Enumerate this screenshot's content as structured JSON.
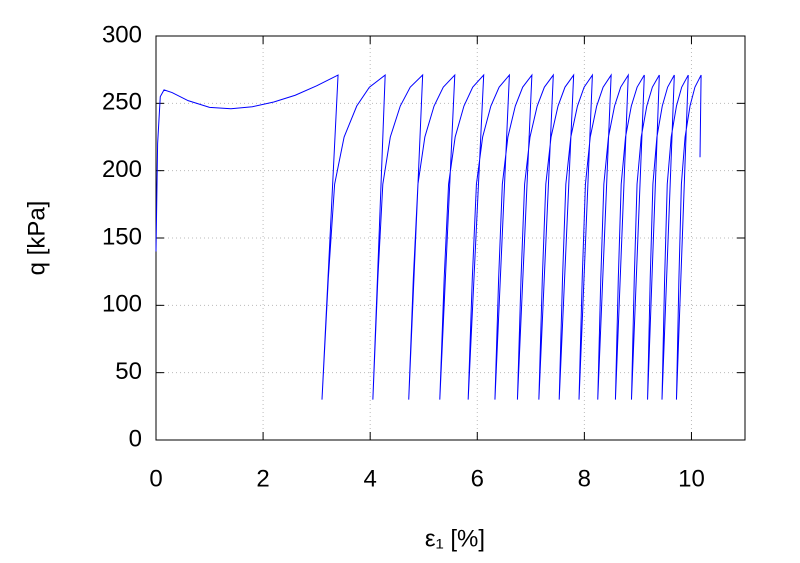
{
  "chart_data": {
    "type": "line",
    "x_label": "ε₁ [%]",
    "y_label": "q [kPa]",
    "x": [
      0,
      0.03,
      0.08,
      0.15,
      0.3,
      0.6,
      1.0,
      1.4,
      1.8,
      2.2,
      2.6,
      3.0,
      3.4,
      3.1,
      3.218,
      3.336,
      3.513,
      3.749,
      3.985,
      4.28,
      4.05,
      4.143,
      4.236,
      4.376,
      4.562,
      4.748,
      4.98,
      4.72,
      4.806,
      4.892,
      5.021,
      5.193,
      5.365,
      5.58,
      5.3,
      5.382,
      5.464,
      5.587,
      5.751,
      5.915,
      6.12,
      5.83,
      5.907,
      5.984,
      6.1,
      6.254,
      6.408,
      6.6,
      6.33,
      6.399,
      6.468,
      6.572,
      6.71,
      6.848,
      7.02,
      6.75,
      6.817,
      6.884,
      6.985,
      7.119,
      7.253,
      7.42,
      7.15,
      7.215,
      7.28,
      7.378,
      7.508,
      7.638,
      7.8,
      7.53,
      7.592,
      7.654,
      7.747,
      7.871,
      7.995,
      8.15,
      7.9,
      7.96,
      8.02,
      8.11,
      8.23,
      8.35,
      8.5,
      8.25,
      8.307,
      8.364,
      8.45,
      8.564,
      8.678,
      8.82,
      8.58,
      8.634,
      8.688,
      8.769,
      8.877,
      8.985,
      9.12,
      8.88,
      8.932,
      8.984,
      9.062,
      9.166,
      9.27,
      9.4,
      9.18,
      9.23,
      9.28,
      9.355,
      9.455,
      9.555,
      9.68,
      9.45,
      9.499,
      9.548,
      9.622,
      9.72,
      9.818,
      9.94,
      9.72,
      9.766,
      9.812,
      9.881,
      9.973,
      10.065,
      10.18,
      10.16
    ],
    "series": [
      {
        "color": "#0000ff",
        "values": [
          140,
          220,
          255,
          260,
          258,
          252,
          247,
          246,
          247.5,
          251,
          256,
          263,
          271,
          30,
          120,
          190,
          225,
          248,
          262,
          271,
          30,
          120,
          190,
          225,
          248,
          262,
          271,
          30,
          120,
          190,
          225,
          248,
          262,
          271,
          30,
          120,
          190,
          225,
          248,
          262,
          271,
          30,
          120,
          190,
          225,
          248,
          262,
          271,
          30,
          120,
          190,
          225,
          248,
          262,
          271,
          30,
          120,
          190,
          225,
          248,
          262,
          271,
          30,
          120,
          190,
          225,
          248,
          262,
          271,
          30,
          120,
          190,
          225,
          248,
          262,
          271,
          30,
          120,
          190,
          225,
          248,
          262,
          271,
          30,
          120,
          190,
          225,
          248,
          262,
          271,
          30,
          120,
          190,
          225,
          248,
          262,
          271,
          30,
          120,
          190,
          225,
          248,
          262,
          271,
          30,
          120,
          190,
          225,
          248,
          262,
          271,
          30,
          120,
          190,
          225,
          248,
          262,
          271,
          30,
          120,
          190,
          225,
          248,
          262,
          271,
          210
        ]
      }
    ],
    "xlim": [
      0,
      11
    ],
    "ylim": [
      0,
      300
    ],
    "xticks": [
      0,
      2,
      4,
      6,
      8,
      10
    ],
    "yticks": [
      0,
      50,
      100,
      150,
      200,
      250,
      300
    ],
    "grid": true
  }
}
